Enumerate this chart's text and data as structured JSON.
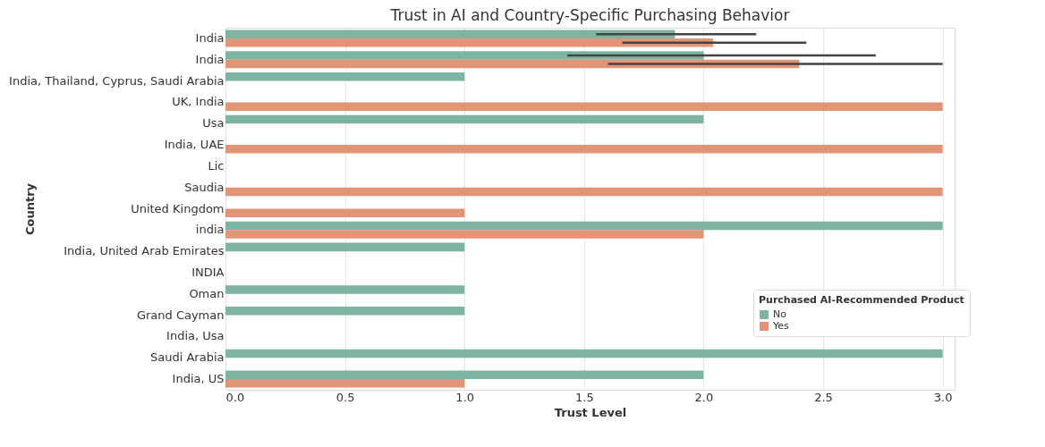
{
  "chart_data": {
    "type": "bar",
    "orientation": "horizontal",
    "title": "Trust in AI and Country-Specific Purchasing Behavior",
    "xlabel": "Trust Level",
    "ylabel": "Country",
    "legend_title": "Purchased AI-Recommended Product",
    "legend": "bottom right",
    "grid": "x",
    "categories": [
      "India",
      "India",
      "India, Thailand, Cyprus, Saudi Arabia",
      "UK, India",
      "Usa",
      "India, UAE",
      "Lic",
      "Saudia",
      "United Kingdom",
      "india",
      "India, United Arab Emirates",
      "INDIA",
      "Oman",
      "Grand Cayman",
      "India, Usa",
      "Saudi Arabia",
      "India, US"
    ],
    "xlim": [
      0,
      3.05
    ],
    "xticks": [
      {
        "value": 0,
        "label": "0.0"
      },
      {
        "value": 0.5,
        "label": "0.5"
      },
      {
        "value": 1,
        "label": "1.0"
      },
      {
        "value": 1.5,
        "label": "1.5"
      },
      {
        "value": 2,
        "label": "2.0"
      },
      {
        "value": 2.5,
        "label": "2.5"
      },
      {
        "value": 3,
        "label": "3.0"
      }
    ],
    "series": [
      {
        "name": "No",
        "color": "#7db5a0",
        "values": [
          1.88,
          2.0,
          1,
          null,
          2,
          null,
          null,
          null,
          null,
          3,
          1,
          null,
          1,
          1,
          null,
          3,
          2
        ],
        "errors": [
          [
            1.55,
            2.22
          ],
          [
            1.43,
            2.72
          ],
          null,
          null,
          null,
          null,
          null,
          null,
          null,
          null,
          null,
          null,
          null,
          null,
          null,
          null,
          null
        ]
      },
      {
        "name": "Yes",
        "color": "#e29576",
        "values": [
          2.04,
          2.4,
          null,
          3,
          null,
          3,
          null,
          3,
          1,
          2,
          null,
          null,
          null,
          null,
          null,
          null,
          1
        ],
        "errors": [
          [
            1.66,
            2.43
          ],
          [
            1.6,
            3.0
          ],
          null,
          null,
          null,
          null,
          null,
          null,
          null,
          null,
          null,
          null,
          null,
          null,
          null,
          null,
          null
        ]
      }
    ]
  }
}
